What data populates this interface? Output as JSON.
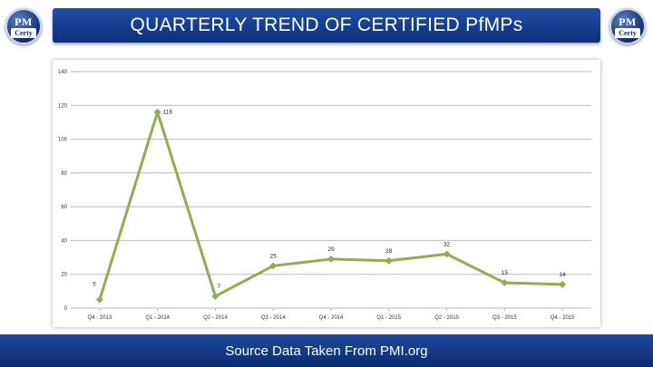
{
  "header": {
    "title": "QUARTERLY TREND OF CERTIFIED PfMPs",
    "logo_left": {
      "line1": "PM",
      "line2": "Certy"
    },
    "logo_right": {
      "line1": "PM",
      "line2": "Certy"
    }
  },
  "footer": {
    "text": "Source Data Taken From PMI.org"
  },
  "colors": {
    "accent": "#1a3f8f",
    "line": "#8db04f",
    "grid": "#b9b9b9"
  },
  "chart_data": {
    "type": "line",
    "categories": [
      "Q4 - 2013",
      "Q1 - 2014",
      "Q2 - 2014",
      "Q3 - 2014",
      "Q4 - 2014",
      "Q1 - 2015",
      "Q2 - 2015",
      "Q3 - 2015",
      "Q4 - 2015"
    ],
    "series": [
      {
        "values": [
          5,
          116,
          7,
          25,
          29,
          28,
          32,
          15,
          14
        ]
      }
    ],
    "data_labels": [
      "5",
      "116",
      "7",
      "25",
      "29",
      "28",
      "32",
      "15",
      "14"
    ],
    "yticks": [
      "0",
      "20",
      "40",
      "60",
      "80",
      "100",
      "120",
      "140"
    ],
    "ylim": [
      0,
      140
    ],
    "grid": true,
    "legend": "none",
    "xlabel": "",
    "ylabel": ""
  }
}
